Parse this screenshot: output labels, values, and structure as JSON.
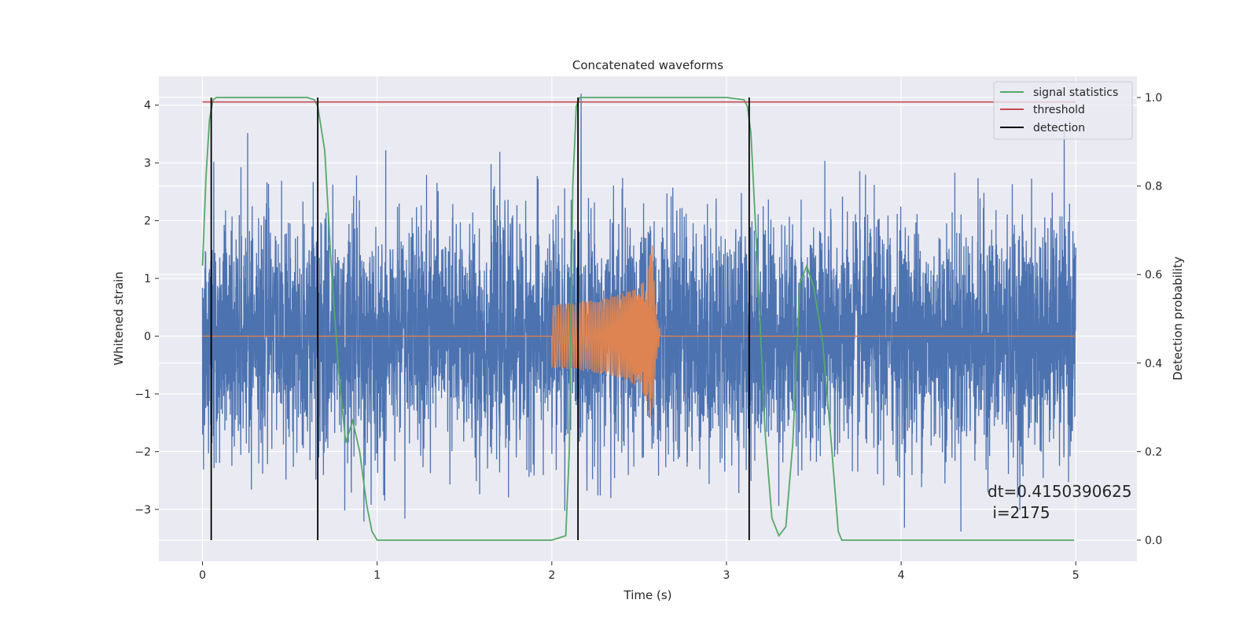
{
  "chart_data": {
    "type": "line",
    "title": "Concatenated waveforms",
    "xlabel": "Time (s)",
    "ylabel_left": "Whitened strain",
    "ylabel_right": "Detection probability",
    "xlim": [
      -0.25,
      5.35
    ],
    "ylim_left": [
      -3.9,
      4.5
    ],
    "ylim_right": [
      -0.048,
      1.048
    ],
    "x_ticks": [
      0,
      1,
      2,
      3,
      4,
      5
    ],
    "x_tick_labels": [
      "0",
      "1",
      "2",
      "3",
      "4",
      "5"
    ],
    "y_left_ticks": [
      -3,
      -2,
      -1,
      0,
      1,
      2,
      3,
      4
    ],
    "y_left_tick_labels": [
      "−3",
      "−2",
      "−1",
      "0",
      "1",
      "2",
      "3",
      "4"
    ],
    "y_right_ticks": [
      0.0,
      0.2,
      0.4,
      0.6,
      0.8,
      1.0
    ],
    "y_right_tick_labels": [
      "0.0",
      "0.2",
      "0.4",
      "0.6",
      "0.8",
      "1.0"
    ],
    "grid": true,
    "legend_placement": "top-right",
    "legend": [
      "signal statistics",
      "threshold",
      "detection"
    ],
    "colors": {
      "whitened_strain": "#4c72b0",
      "template": "#dd8452",
      "signal_statistics": "#55a868",
      "threshold": "#c44e52",
      "detection": "#000000",
      "background": "#eaeaf2"
    },
    "series": [
      {
        "name": "signal statistics",
        "axis": "right",
        "x": [
          0,
          0.02,
          0.04,
          0.06,
          0.08,
          0.1,
          0.2,
          0.5,
          0.6,
          0.64,
          0.66,
          0.7,
          0.74,
          0.78,
          0.82,
          0.86,
          0.9,
          0.94,
          0.97,
          1.0,
          1.5,
          2.0,
          2.08,
          2.1,
          2.12,
          2.14,
          2.16,
          2.2,
          2.5,
          3.0,
          3.1,
          3.12,
          3.14,
          3.18,
          3.22,
          3.26,
          3.3,
          3.34,
          3.38,
          3.42,
          3.46,
          3.5,
          3.55,
          3.6,
          3.64,
          3.66,
          3.7,
          4.0,
          4.5,
          4.99
        ],
        "y": [
          0.62,
          0.82,
          0.95,
          0.995,
          1.0,
          1.0,
          1.0,
          1.0,
          1.0,
          0.995,
          0.98,
          0.88,
          0.6,
          0.38,
          0.22,
          0.27,
          0.2,
          0.08,
          0.02,
          0.0,
          0.0,
          0.0,
          0.01,
          0.2,
          0.8,
          0.98,
          1.0,
          1.0,
          1.0,
          1.0,
          0.995,
          0.98,
          0.92,
          0.6,
          0.25,
          0.05,
          0.01,
          0.03,
          0.22,
          0.58,
          0.62,
          0.57,
          0.45,
          0.22,
          0.02,
          0.0,
          0.0,
          0.0,
          0.0,
          0.0
        ]
      },
      {
        "name": "threshold",
        "axis": "right",
        "x": [
          0,
          5
        ],
        "y": [
          0.99,
          0.99
        ]
      },
      {
        "name": "detection",
        "axis": "right",
        "x": [
          0.05,
          0.66,
          2.15,
          3.13
        ],
        "y_range": [
          0,
          1
        ]
      }
    ],
    "annotations": [
      "dt=0.4150390625",
      " i=2175"
    ]
  }
}
